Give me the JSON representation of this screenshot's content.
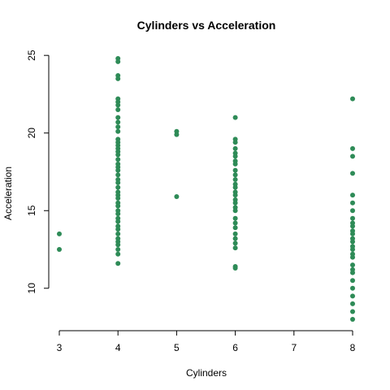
{
  "chart_data": {
    "type": "scatter",
    "title": "Cylinders vs Acceleration",
    "xlabel": "Cylinders",
    "ylabel": "Acceleration",
    "xlim": [
      3,
      8
    ],
    "ylim": [
      8,
      24.8
    ],
    "x_ticks": [
      3,
      4,
      5,
      6,
      7,
      8
    ],
    "y_ticks": [
      10,
      15,
      20,
      25
    ],
    "point_color": "#2E8B57",
    "grid": false,
    "legend": "none",
    "points": [
      {
        "x": 3,
        "y": 13.5
      },
      {
        "x": 3,
        "y": 12.5
      },
      {
        "x": 4,
        "y": 24.8
      },
      {
        "x": 4,
        "y": 24.6
      },
      {
        "x": 4,
        "y": 23.7
      },
      {
        "x": 4,
        "y": 23.5
      },
      {
        "x": 4,
        "y": 22.2
      },
      {
        "x": 4,
        "y": 22.0
      },
      {
        "x": 4,
        "y": 21.8
      },
      {
        "x": 4,
        "y": 21.5
      },
      {
        "x": 4,
        "y": 21.0
      },
      {
        "x": 4,
        "y": 20.7
      },
      {
        "x": 4,
        "y": 20.4
      },
      {
        "x": 4,
        "y": 20.1
      },
      {
        "x": 4,
        "y": 19.6
      },
      {
        "x": 4,
        "y": 19.4
      },
      {
        "x": 4,
        "y": 19.2
      },
      {
        "x": 4,
        "y": 19.0
      },
      {
        "x": 4,
        "y": 18.8
      },
      {
        "x": 4,
        "y": 18.6
      },
      {
        "x": 4,
        "y": 18.3
      },
      {
        "x": 4,
        "y": 18.0
      },
      {
        "x": 4,
        "y": 17.8
      },
      {
        "x": 4,
        "y": 17.6
      },
      {
        "x": 4,
        "y": 17.3
      },
      {
        "x": 4,
        "y": 17.0
      },
      {
        "x": 4,
        "y": 16.8
      },
      {
        "x": 4,
        "y": 16.5
      },
      {
        "x": 4,
        "y": 16.2
      },
      {
        "x": 4,
        "y": 16.0
      },
      {
        "x": 4,
        "y": 15.8
      },
      {
        "x": 4,
        "y": 15.5
      },
      {
        "x": 4,
        "y": 15.3
      },
      {
        "x": 4,
        "y": 15.0
      },
      {
        "x": 4,
        "y": 14.8
      },
      {
        "x": 4,
        "y": 14.5
      },
      {
        "x": 4,
        "y": 14.3
      },
      {
        "x": 4,
        "y": 14.0
      },
      {
        "x": 4,
        "y": 13.8
      },
      {
        "x": 4,
        "y": 13.5
      },
      {
        "x": 4,
        "y": 13.2
      },
      {
        "x": 4,
        "y": 13.0
      },
      {
        "x": 4,
        "y": 12.8
      },
      {
        "x": 4,
        "y": 12.5
      },
      {
        "x": 4,
        "y": 12.2
      },
      {
        "x": 4,
        "y": 11.6
      },
      {
        "x": 5,
        "y": 20.1
      },
      {
        "x": 5,
        "y": 19.9
      },
      {
        "x": 5,
        "y": 15.9
      },
      {
        "x": 6,
        "y": 21.0
      },
      {
        "x": 6,
        "y": 19.6
      },
      {
        "x": 6,
        "y": 19.4
      },
      {
        "x": 6,
        "y": 19.0
      },
      {
        "x": 6,
        "y": 18.7
      },
      {
        "x": 6,
        "y": 18.5
      },
      {
        "x": 6,
        "y": 18.2
      },
      {
        "x": 6,
        "y": 18.0
      },
      {
        "x": 6,
        "y": 17.6
      },
      {
        "x": 6,
        "y": 17.3
      },
      {
        "x": 6,
        "y": 17.0
      },
      {
        "x": 6,
        "y": 16.7
      },
      {
        "x": 6,
        "y": 16.5
      },
      {
        "x": 6,
        "y": 16.2
      },
      {
        "x": 6,
        "y": 16.0
      },
      {
        "x": 6,
        "y": 15.7
      },
      {
        "x": 6,
        "y": 15.5
      },
      {
        "x": 6,
        "y": 15.2
      },
      {
        "x": 6,
        "y": 15.0
      },
      {
        "x": 6,
        "y": 14.5
      },
      {
        "x": 6,
        "y": 14.2
      },
      {
        "x": 6,
        "y": 13.9
      },
      {
        "x": 6,
        "y": 13.5
      },
      {
        "x": 6,
        "y": 13.2
      },
      {
        "x": 6,
        "y": 12.9
      },
      {
        "x": 6,
        "y": 12.6
      },
      {
        "x": 6,
        "y": 11.4
      },
      {
        "x": 6,
        "y": 11.3
      },
      {
        "x": 8,
        "y": 22.2
      },
      {
        "x": 8,
        "y": 19.0
      },
      {
        "x": 8,
        "y": 18.5
      },
      {
        "x": 8,
        "y": 17.4
      },
      {
        "x": 8,
        "y": 16.0
      },
      {
        "x": 8,
        "y": 15.5
      },
      {
        "x": 8,
        "y": 15.0
      },
      {
        "x": 8,
        "y": 14.5
      },
      {
        "x": 8,
        "y": 14.2
      },
      {
        "x": 8,
        "y": 14.0
      },
      {
        "x": 8,
        "y": 13.7
      },
      {
        "x": 8,
        "y": 13.5
      },
      {
        "x": 8,
        "y": 13.2
      },
      {
        "x": 8,
        "y": 13.0
      },
      {
        "x": 8,
        "y": 12.7
      },
      {
        "x": 8,
        "y": 12.5
      },
      {
        "x": 8,
        "y": 12.2
      },
      {
        "x": 8,
        "y": 12.0
      },
      {
        "x": 8,
        "y": 11.5
      },
      {
        "x": 8,
        "y": 11.2
      },
      {
        "x": 8,
        "y": 11.0
      },
      {
        "x": 8,
        "y": 10.5
      },
      {
        "x": 8,
        "y": 10.0
      },
      {
        "x": 8,
        "y": 9.5
      },
      {
        "x": 8,
        "y": 9.0
      },
      {
        "x": 8,
        "y": 8.5
      },
      {
        "x": 8,
        "y": 8.0
      }
    ]
  }
}
